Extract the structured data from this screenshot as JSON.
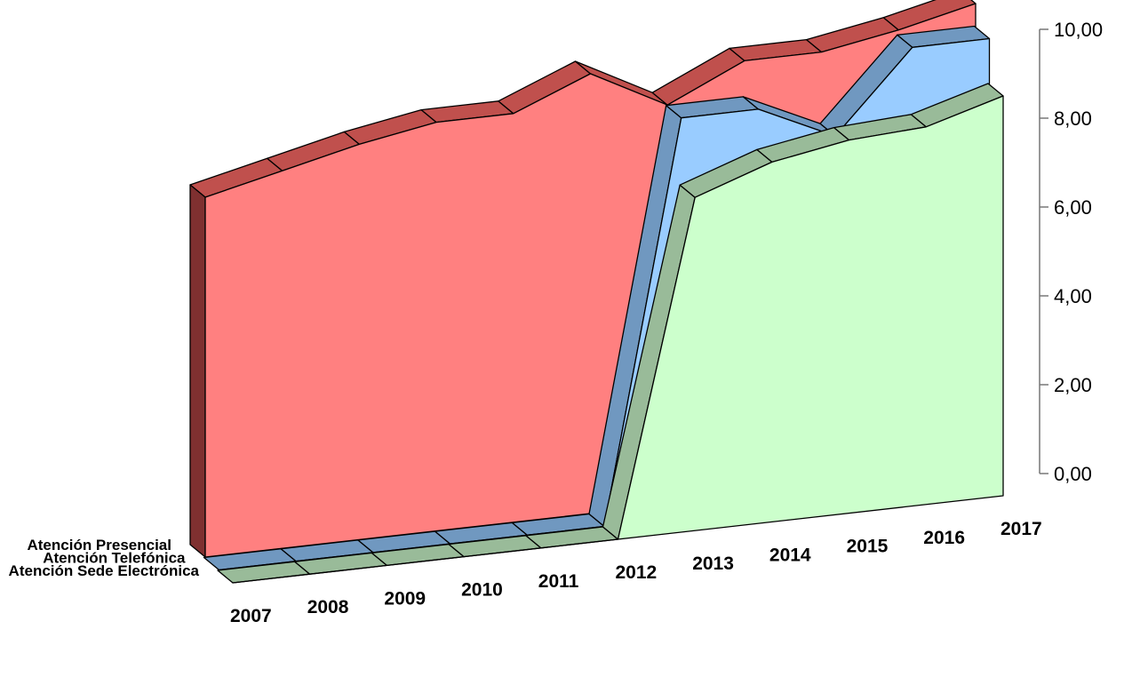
{
  "chart_data": {
    "type": "area",
    "is_3d": true,
    "title": "",
    "xlabel": "",
    "ylabel": "",
    "categories": [
      "2007",
      "2008",
      "2009",
      "2010",
      "2011",
      "2012",
      "2013",
      "2014",
      "2015",
      "2016",
      "2017"
    ],
    "ylim": [
      0,
      10
    ],
    "yticks": [
      "0,00",
      "2,00",
      "4,00",
      "6,00",
      "8,00",
      "10,00"
    ],
    "series": [
      {
        "name": "Atención Presencial",
        "values": [
          8.1,
          8.5,
          8.9,
          9.2,
          9.2,
          9.9,
          9.0,
          9.8,
          9.8,
          10.1,
          10.5
        ],
        "colors": {
          "front": "#ff8080",
          "top": "#c0504d",
          "side": "#7f3030"
        }
      },
      {
        "name": "Atención Telefónica",
        "values": [
          0,
          0,
          0,
          0,
          0,
          0,
          9.0,
          9.0,
          8.2,
          10.0,
          10.0
        ],
        "colors": {
          "front": "#99ccff",
          "top": "#7098c0",
          "side": "#4f6f90"
        }
      },
      {
        "name": "Atención Sede Electrónica",
        "values": [
          0,
          0,
          0,
          0,
          0,
          0,
          7.5,
          8.1,
          8.4,
          8.5,
          9.0
        ],
        "colors": {
          "front": "#ccffcc",
          "top": "#99bb99",
          "side": "#6f8f6f"
        }
      }
    ]
  }
}
